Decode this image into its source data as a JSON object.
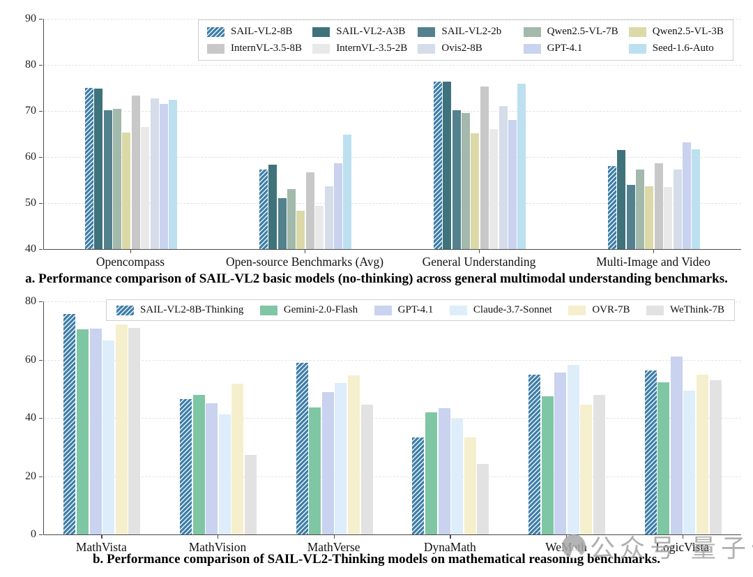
{
  "captions": {
    "a": "a. Performance comparison of SAIL-VL2 basic models (no-thinking) across general multimodal understanding benchmarks.",
    "b": "b. Performance comparison of SAIL-VL2-Thinking models on mathematical reasoning benchmarks."
  },
  "watermark": {
    "text": "公众号 量子位",
    "icon": "qbitai-circle-logo",
    "color": "#a3a3a3"
  },
  "chart_data": [
    {
      "type": "bar",
      "title": "",
      "xlabel": "",
      "ylabel": "",
      "ylim": [
        40,
        90
      ],
      "yticks": [
        40,
        50,
        60,
        70,
        80,
        90
      ],
      "grid": "horizontal-dashed",
      "legend_position": "top-center-two-rows",
      "categories": [
        "Opencompass",
        "Open-source Benchmarks (Avg)",
        "General Understanding",
        "Multi-Image and Video"
      ],
      "series": [
        {
          "name": "SAIL-VL2-8B",
          "color": "#3d7ea8",
          "hatch": true,
          "values": [
            75.0,
            57.2,
            76.3,
            58.0
          ]
        },
        {
          "name": "SAIL-VL2-A3B",
          "color": "#3f737b",
          "hatch": false,
          "values": [
            74.8,
            58.4,
            76.3,
            61.5
          ]
        },
        {
          "name": "SAIL-VL2-2b",
          "color": "#54818e",
          "hatch": false,
          "values": [
            70.2,
            51.0,
            70.2,
            53.9
          ]
        },
        {
          "name": "Qwen2.5-VL-7B",
          "color": "#a2b9ab",
          "hatch": false,
          "values": [
            70.5,
            53.1,
            69.5,
            57.3
          ]
        },
        {
          "name": "Qwen2.5-VL-3B",
          "color": "#dcd9a8",
          "hatch": false,
          "values": [
            65.3,
            48.3,
            65.1,
            53.6
          ]
        },
        {
          "name": "InternVL-3.5-8B",
          "color": "#c8c8c8",
          "hatch": false,
          "values": [
            73.4,
            56.6,
            75.3,
            58.7
          ]
        },
        {
          "name": "InternVL-3.5-2B",
          "color": "#e9e9e9",
          "hatch": false,
          "values": [
            66.5,
            49.4,
            66.0,
            53.5
          ]
        },
        {
          "name": "Ovis2-8B",
          "color": "#d4dde9",
          "hatch": false,
          "values": [
            72.7,
            53.6,
            71.0,
            57.3
          ]
        },
        {
          "name": "GPT-4.1",
          "color": "#c9d2ef",
          "hatch": false,
          "values": [
            71.5,
            58.6,
            68.1,
            63.2
          ]
        },
        {
          "name": "Seed-1.6-Auto",
          "color": "#bce0f0",
          "hatch": false,
          "values": [
            72.4,
            64.8,
            75.9,
            61.7
          ]
        }
      ]
    },
    {
      "type": "bar",
      "title": "",
      "xlabel": "",
      "ylabel": "",
      "ylim": [
        0,
        80
      ],
      "yticks": [
        0,
        20,
        40,
        60,
        80
      ],
      "grid": "horizontal-dashed",
      "legend_position": "top-center-one-row",
      "categories": [
        "MathVista",
        "MathVision",
        "MathVerse",
        "DynaMath",
        "WeMath",
        "LogicVista"
      ],
      "series": [
        {
          "name": "SAIL-VL2-8B-Thinking",
          "color": "#3d7ea8",
          "hatch": true,
          "values": [
            75.8,
            46.5,
            59.0,
            33.4,
            54.8,
            56.4
          ]
        },
        {
          "name": "Gemini-2.0-Flash",
          "color": "#7fc6a4",
          "hatch": false,
          "values": [
            70.5,
            47.8,
            43.7,
            42.0,
            47.4,
            52.3
          ]
        },
        {
          "name": "GPT-4.1",
          "color": "#c9d2ef",
          "hatch": false,
          "values": [
            70.7,
            45.0,
            48.9,
            43.3,
            55.5,
            61.2
          ]
        },
        {
          "name": "Claude-3.7-Sonnet",
          "color": "#ddeefa",
          "hatch": false,
          "values": [
            66.5,
            41.3,
            52.0,
            39.7,
            58.3,
            49.3
          ]
        },
        {
          "name": "OVR-7B",
          "color": "#f5efcd",
          "hatch": false,
          "values": [
            72.1,
            51.7,
            54.5,
            33.2,
            44.5,
            54.8
          ]
        },
        {
          "name": "WeThink-7B",
          "color": "#e2e2e2",
          "hatch": false,
          "values": [
            70.9,
            27.2,
            44.6,
            24.3,
            47.9,
            53.0
          ]
        }
      ]
    }
  ]
}
